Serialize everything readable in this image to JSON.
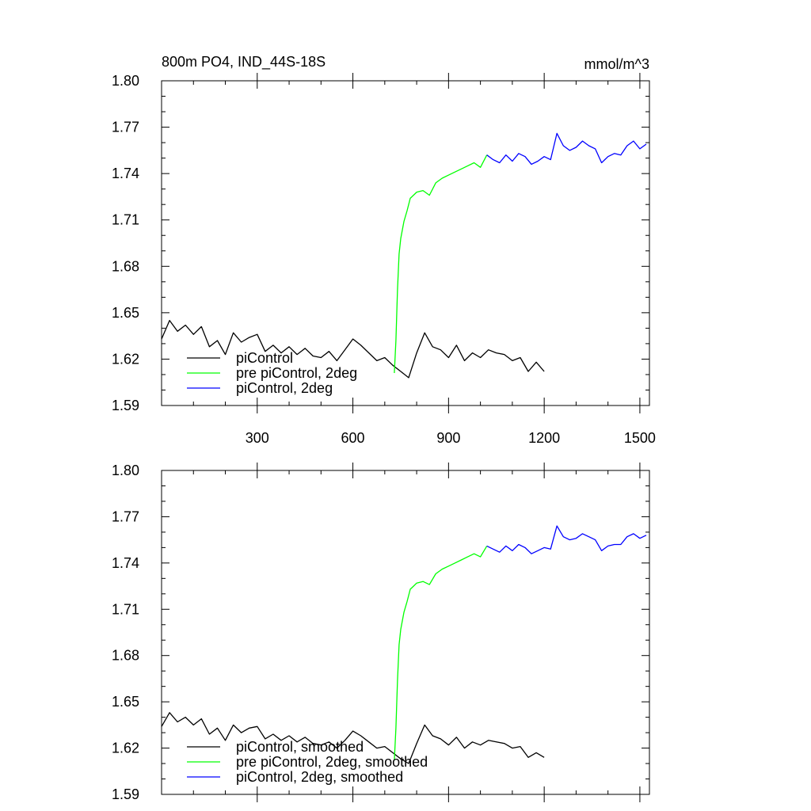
{
  "chart_data": [
    {
      "type": "line",
      "title": "800m PO4, IND_44S-18S",
      "units": "mmol/m^3",
      "xlim": [
        0,
        1530
      ],
      "ylim": [
        1.59,
        1.8
      ],
      "yticks": [
        "1.59",
        "1.62",
        "1.65",
        "1.68",
        "1.71",
        "1.74",
        "1.77",
        "1.80"
      ],
      "xticks": [
        "300",
        "600",
        "900",
        "1200",
        "1500"
      ],
      "show_xtick_labels": true,
      "legend_position": "bottom-left",
      "grid": false,
      "series": [
        {
          "name": "piControl",
          "color": "#000000",
          "x": [
            0,
            25,
            50,
            75,
            100,
            125,
            150,
            175,
            200,
            225,
            250,
            275,
            300,
            325,
            350,
            375,
            400,
            425,
            450,
            475,
            500,
            525,
            550,
            575,
            600,
            625,
            650,
            675,
            700,
            725,
            750,
            775,
            800,
            825,
            850,
            875,
            900,
            925,
            950,
            975,
            1000,
            1025,
            1050,
            1075,
            1100,
            1125,
            1150,
            1175,
            1200
          ],
          "values": [
            1.633,
            1.645,
            1.638,
            1.642,
            1.636,
            1.641,
            1.628,
            1.632,
            1.623,
            1.637,
            1.631,
            1.634,
            1.636,
            1.625,
            1.629,
            1.624,
            1.628,
            1.623,
            1.627,
            1.622,
            1.621,
            1.625,
            1.619,
            1.626,
            1.633,
            1.629,
            1.624,
            1.619,
            1.621,
            1.616,
            1.612,
            1.608,
            1.624,
            1.637,
            1.628,
            1.626,
            1.621,
            1.629,
            1.619,
            1.624,
            1.621,
            1.626,
            1.624,
            1.623,
            1.619,
            1.621,
            1.612,
            1.618,
            1.612
          ]
        },
        {
          "name": "pre piControl, 2deg",
          "color": "#00ff00",
          "x": [
            730,
            735,
            740,
            745,
            750,
            760,
            770,
            780,
            790,
            800,
            820,
            840,
            860,
            880,
            900,
            920,
            940,
            960,
            980,
            1000,
            1020
          ],
          "values": [
            1.611,
            1.632,
            1.665,
            1.688,
            1.698,
            1.709,
            1.716,
            1.724,
            1.726,
            1.728,
            1.729,
            1.726,
            1.734,
            1.737,
            1.739,
            1.741,
            1.743,
            1.745,
            1.747,
            1.744,
            1.752
          ]
        },
        {
          "name": "piControl, 2deg",
          "color": "#0000ff",
          "x": [
            1020,
            1040,
            1060,
            1080,
            1100,
            1120,
            1140,
            1160,
            1180,
            1200,
            1220,
            1240,
            1260,
            1280,
            1300,
            1320,
            1340,
            1360,
            1380,
            1400,
            1420,
            1440,
            1460,
            1480,
            1500,
            1520
          ],
          "values": [
            1.752,
            1.749,
            1.747,
            1.752,
            1.748,
            1.753,
            1.751,
            1.746,
            1.748,
            1.751,
            1.749,
            1.766,
            1.758,
            1.755,
            1.757,
            1.761,
            1.758,
            1.756,
            1.747,
            1.751,
            1.753,
            1.752,
            1.758,
            1.761,
            1.756,
            1.759
          ]
        }
      ]
    },
    {
      "type": "line",
      "xlim": [
        0,
        1530
      ],
      "ylim": [
        1.59,
        1.8
      ],
      "yticks": [
        "1.59",
        "1.62",
        "1.65",
        "1.68",
        "1.71",
        "1.74",
        "1.77",
        "1.80"
      ],
      "xticks": [],
      "show_xtick_labels": false,
      "legend_position": "bottom-left",
      "grid": false,
      "series": [
        {
          "name": "piControl, smoothed",
          "color": "#000000",
          "x": [
            0,
            25,
            50,
            75,
            100,
            125,
            150,
            175,
            200,
            225,
            250,
            275,
            300,
            325,
            350,
            375,
            400,
            425,
            450,
            475,
            500,
            525,
            550,
            575,
            600,
            625,
            650,
            675,
            700,
            725,
            750,
            775,
            800,
            825,
            850,
            875,
            900,
            925,
            950,
            975,
            1000,
            1025,
            1050,
            1075,
            1100,
            1125,
            1150,
            1175,
            1200
          ],
          "values": [
            1.634,
            1.643,
            1.637,
            1.64,
            1.635,
            1.639,
            1.629,
            1.633,
            1.625,
            1.635,
            1.63,
            1.633,
            1.634,
            1.626,
            1.629,
            1.625,
            1.628,
            1.624,
            1.627,
            1.623,
            1.622,
            1.624,
            1.62,
            1.625,
            1.631,
            1.628,
            1.624,
            1.62,
            1.621,
            1.617,
            1.613,
            1.61,
            1.623,
            1.635,
            1.628,
            1.626,
            1.622,
            1.627,
            1.62,
            1.624,
            1.622,
            1.625,
            1.624,
            1.623,
            1.62,
            1.621,
            1.614,
            1.617,
            1.614
          ]
        },
        {
          "name": "pre piControl, 2deg, smoothed",
          "color": "#00ff00",
          "x": [
            730,
            735,
            740,
            745,
            750,
            760,
            770,
            780,
            790,
            800,
            820,
            840,
            860,
            880,
            900,
            920,
            940,
            960,
            980,
            1000,
            1020
          ],
          "values": [
            1.612,
            1.633,
            1.664,
            1.687,
            1.697,
            1.708,
            1.715,
            1.723,
            1.725,
            1.727,
            1.728,
            1.726,
            1.733,
            1.736,
            1.738,
            1.74,
            1.742,
            1.744,
            1.746,
            1.744,
            1.751
          ]
        },
        {
          "name": "piControl, 2deg, smoothed",
          "color": "#0000ff",
          "x": [
            1020,
            1040,
            1060,
            1080,
            1100,
            1120,
            1140,
            1160,
            1180,
            1200,
            1220,
            1240,
            1260,
            1280,
            1300,
            1320,
            1340,
            1360,
            1380,
            1400,
            1420,
            1440,
            1460,
            1480,
            1500,
            1520
          ],
          "values": [
            1.751,
            1.749,
            1.747,
            1.751,
            1.748,
            1.752,
            1.75,
            1.746,
            1.748,
            1.75,
            1.749,
            1.764,
            1.757,
            1.755,
            1.756,
            1.759,
            1.757,
            1.755,
            1.748,
            1.751,
            1.752,
            1.752,
            1.757,
            1.759,
            1.756,
            1.758
          ]
        }
      ]
    }
  ]
}
